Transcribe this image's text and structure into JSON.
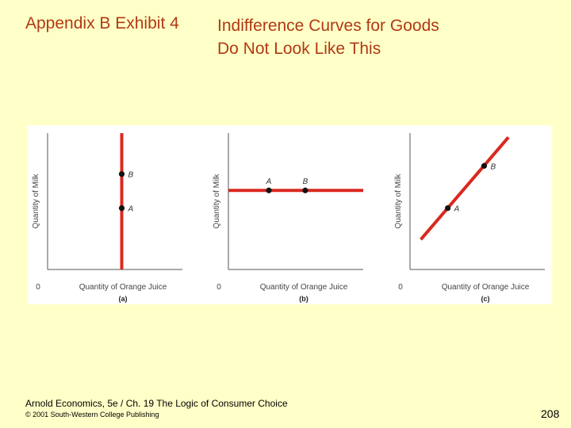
{
  "header": {
    "label": "Appendix B Exhibit 4",
    "title_line1": "Indifference Curves for Goods",
    "title_line2": "Do Not Look Like This"
  },
  "footer": {
    "line1": "Arnold Economics, 5e / Ch. 19  The Logic of Consumer Choice",
    "line2": "© 2001 South-Western College Publishing",
    "page_number": "208"
  },
  "colors": {
    "background": "#ffffc8",
    "title": "#b03a14",
    "curve": "#d9281f",
    "point": "#111111"
  },
  "chart_data": [
    {
      "type": "line",
      "panel_label": "(a)",
      "xlabel": "Quantity of Orange Juice",
      "ylabel": "Quantity of Milk",
      "origin_label": "0",
      "curve": "vertical",
      "series": [
        {
          "x": [
            0.55,
            0.55
          ],
          "y": [
            0.0,
            1.0
          ]
        }
      ],
      "points": [
        {
          "label": "B",
          "x": 0.55,
          "y": 0.7
        },
        {
          "label": "A",
          "x": 0.55,
          "y": 0.45
        }
      ]
    },
    {
      "type": "line",
      "panel_label": "(b)",
      "xlabel": "Quantity of Orange Juice",
      "ylabel": "Quantity of Milk",
      "origin_label": "0",
      "curve": "horizontal",
      "series": [
        {
          "x": [
            0.0,
            1.0
          ],
          "y": [
            0.58,
            0.58
          ]
        }
      ],
      "points": [
        {
          "label": "A",
          "x": 0.3,
          "y": 0.58
        },
        {
          "label": "B",
          "x": 0.57,
          "y": 0.58
        }
      ]
    },
    {
      "type": "line",
      "panel_label": "(c)",
      "xlabel": "Quantity of Orange Juice",
      "ylabel": "Quantity of Milk",
      "origin_label": "0",
      "curve": "upward-sloping",
      "series": [
        {
          "x": [
            0.08,
            0.73
          ],
          "y": [
            0.22,
            0.97
          ]
        }
      ],
      "points": [
        {
          "label": "A",
          "x": 0.28,
          "y": 0.45
        },
        {
          "label": "B",
          "x": 0.55,
          "y": 0.76
        }
      ]
    }
  ]
}
